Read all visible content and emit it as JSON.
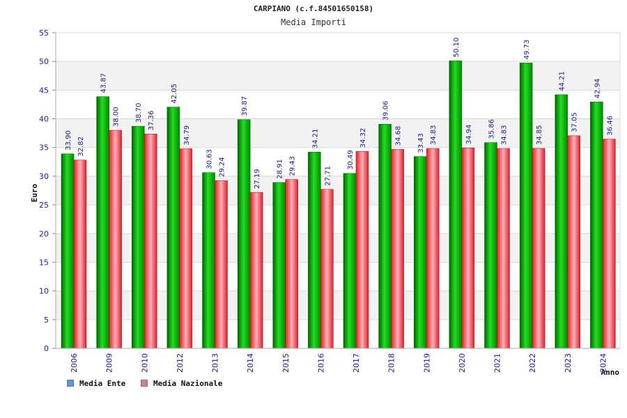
{
  "title": "CARPIANO (c.f.84501650158)",
  "subtitle": "Media Importi",
  "chart_data": {
    "type": "bar",
    "ylabel": "Euro",
    "xlabel": "Anno",
    "ylim": [
      0,
      55
    ],
    "yticks": [
      0,
      5,
      10,
      15,
      20,
      25,
      30,
      35,
      40,
      45,
      50,
      55
    ],
    "grid": true,
    "legend_placement": "bottom-left",
    "categories": [
      "2006",
      "2009",
      "2010",
      "2012",
      "2013",
      "2014",
      "2015",
      "2016",
      "2017",
      "2018",
      "2019",
      "2020",
      "2021",
      "2022",
      "2023",
      "2024"
    ],
    "series": [
      {
        "name": "Media Ente",
        "color": "#00bb00",
        "legend_color": "#5599ee",
        "values": [
          33.9,
          43.87,
          38.7,
          42.05,
          30.63,
          39.87,
          28.91,
          34.21,
          30.49,
          39.06,
          33.43,
          50.1,
          35.86,
          49.73,
          44.21,
          42.94
        ],
        "labels": [
          "33.90",
          "43.87",
          "38.70",
          "42.05",
          "30.63",
          "39.87",
          "28.91",
          "34.21",
          "30.49",
          "39.06",
          "33.43",
          "50.10",
          "35.86",
          "49.73",
          "44.21",
          "42.94"
        ]
      },
      {
        "name": "Media Nazionale",
        "color": "#ee2233",
        "legend_color": "#dd7799",
        "values": [
          32.82,
          38.0,
          37.36,
          34.79,
          29.24,
          27.19,
          29.43,
          27.71,
          34.32,
          34.68,
          34.83,
          34.94,
          34.83,
          34.85,
          37.05,
          36.46
        ],
        "labels": [
          "32.82",
          "38.00",
          "37.36",
          "34.79",
          "29.24",
          "27.19",
          "29.43",
          "27.71",
          "34.32",
          "34.68",
          "34.83",
          "34.94",
          "34.83",
          "34.85",
          "37.05",
          "36.46"
        ]
      }
    ]
  }
}
